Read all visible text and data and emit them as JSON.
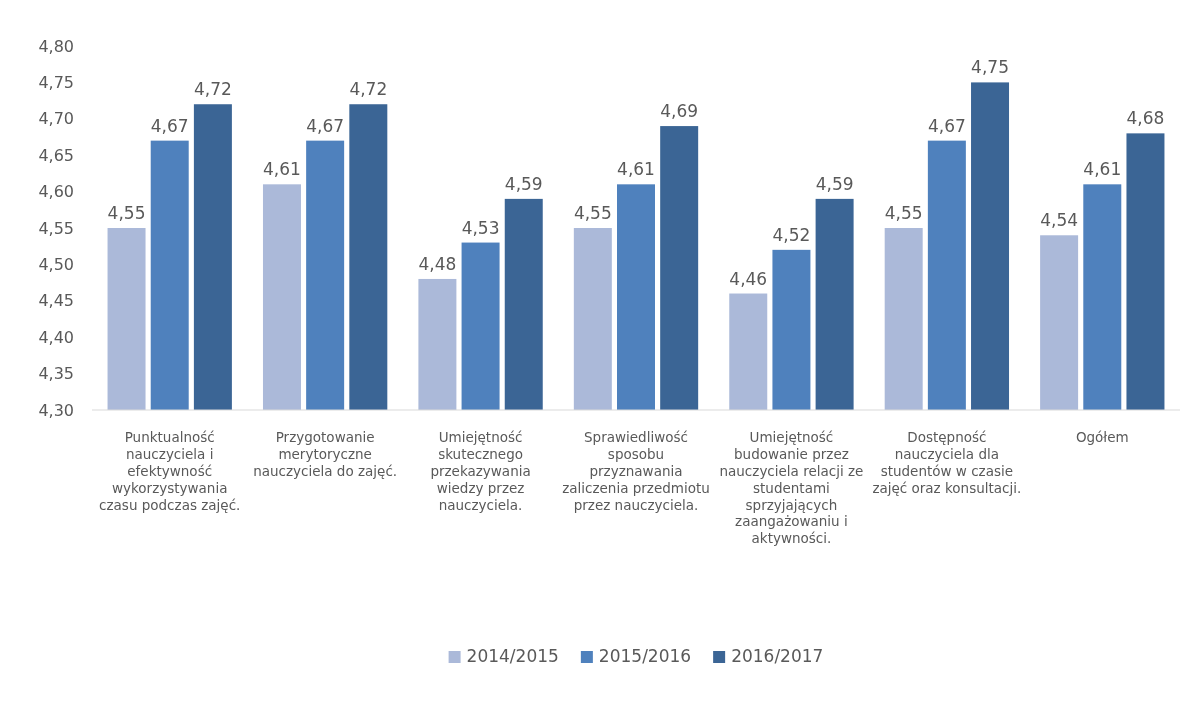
{
  "chart_data": {
    "type": "bar",
    "categories": [
      "Punktualność nauczyciela i efektywność wykorzystywania czasu podczas zajęć.",
      "Przygotowanie merytoryczne nauczyciela do zajęć.",
      "Umiejętność skutecznego przekazywania wiedzy przez nauczyciela.",
      "Sprawiedliwość sposobu przyznawania zaliczenia przedmiotu przez nauczyciela.",
      "Umiejętność budowanie przez nauczyciela relacji ze studentami sprzyjających zaangażowaniu i aktywności.",
      "Dostępność nauczyciela dla studentów w czasie zajęć oraz konsultacji.",
      "Ogółem"
    ],
    "series": [
      {
        "name": "2014/2015",
        "color": "#abb9d9",
        "values": [
          4.55,
          4.61,
          4.48,
          4.55,
          4.46,
          4.55,
          4.54
        ],
        "value_labels": [
          "4,55",
          "4,61",
          "4,48",
          "4,55",
          "4,46",
          "4,55",
          "4,54"
        ]
      },
      {
        "name": "2015/2016",
        "color": "#4f81bd",
        "values": [
          4.67,
          4.67,
          4.53,
          4.61,
          4.52,
          4.67,
          4.61
        ],
        "value_labels": [
          "4,67",
          "4,67",
          "4,53",
          "4,61",
          "4,52",
          "4,67",
          "4,61"
        ]
      },
      {
        "name": "2016/2017",
        "color": "#3b6595",
        "values": [
          4.72,
          4.72,
          4.59,
          4.69,
          4.59,
          4.75,
          4.68
        ],
        "value_labels": [
          "4,72",
          "4,72",
          "4,59",
          "4,69",
          "4,59",
          "4,75",
          "4,68"
        ]
      }
    ],
    "ylim": [
      4.3,
      4.8
    ],
    "yticks": [
      {
        "value": 4.3,
        "label": "4,30"
      },
      {
        "value": 4.35,
        "label": "4,35"
      },
      {
        "value": 4.4,
        "label": "4,40"
      },
      {
        "value": 4.45,
        "label": "4,45"
      },
      {
        "value": 4.5,
        "label": "4,50"
      },
      {
        "value": 4.55,
        "label": "4,55"
      },
      {
        "value": 4.6,
        "label": "4,60"
      },
      {
        "value": 4.65,
        "label": "4,65"
      },
      {
        "value": 4.7,
        "label": "4,70"
      },
      {
        "value": 4.75,
        "label": "4,75"
      },
      {
        "value": 4.8,
        "label": "4,80"
      }
    ],
    "grid": false,
    "legend": "bottom"
  }
}
